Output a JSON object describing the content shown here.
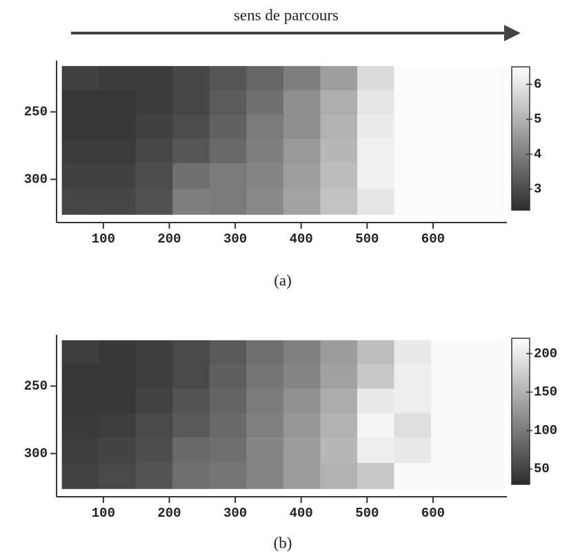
{
  "chart_data": [
    {
      "type": "heatmap",
      "annotation": "sens de parcours",
      "label": "(a)",
      "colormap": "gray",
      "yaxis_inverted": true,
      "xlim": [
        29,
        712
      ],
      "xticks": [
        100,
        200,
        300,
        400,
        500,
        600
      ],
      "ylim": [
        212,
        332
      ],
      "yticks": [
        250,
        300
      ],
      "x_edges": [
        37,
        93,
        149,
        205,
        261,
        317,
        373,
        429,
        485,
        541,
        597,
        653,
        709
      ],
      "y_edges": [
        216,
        234,
        252,
        270,
        288,
        307,
        326
      ],
      "values": [
        [
          2.8,
          2.7,
          2.7,
          2.9,
          3.2,
          3.5,
          4.0,
          4.6,
          5.8,
          6.4,
          6.4,
          6.4
        ],
        [
          2.6,
          2.6,
          2.7,
          2.9,
          3.3,
          3.7,
          4.3,
          4.9,
          6.0,
          6.4,
          6.4,
          6.4
        ],
        [
          2.6,
          2.6,
          2.8,
          3.0,
          3.4,
          3.9,
          4.3,
          5.0,
          6.1,
          6.4,
          6.4,
          6.4
        ],
        [
          2.7,
          2.7,
          2.9,
          3.2,
          3.6,
          4.0,
          4.5,
          5.1,
          6.2,
          6.4,
          6.4,
          6.4
        ],
        [
          2.8,
          2.8,
          3.0,
          3.7,
          3.9,
          4.1,
          4.6,
          5.2,
          6.2,
          6.4,
          6.4,
          6.4
        ],
        [
          2.9,
          2.9,
          3.1,
          4.0,
          3.9,
          4.2,
          4.7,
          5.3,
          6.0,
          6.4,
          6.4,
          6.4
        ]
      ],
      "clim": [
        2.4,
        6.5
      ],
      "cticks": [
        3,
        4,
        5,
        6
      ]
    },
    {
      "type": "heatmap",
      "label": "(b)",
      "colormap": "gray",
      "yaxis_inverted": true,
      "xlim": [
        29,
        712
      ],
      "xticks": [
        100,
        200,
        300,
        400,
        500,
        600
      ],
      "ylim": [
        212,
        332
      ],
      "yticks": [
        250,
        300
      ],
      "x_edges": [
        37,
        93,
        149,
        205,
        261,
        317,
        373,
        429,
        485,
        541,
        597,
        653,
        709
      ],
      "y_edges": [
        216,
        234,
        252,
        270,
        288,
        307,
        326
      ],
      "values": [
        [
          45,
          40,
          45,
          55,
          70,
          90,
          105,
          130,
          160,
          200,
          215,
          215
        ],
        [
          40,
          40,
          45,
          55,
          75,
          95,
          110,
          135,
          170,
          205,
          215,
          215
        ],
        [
          40,
          40,
          50,
          65,
          80,
          100,
          120,
          145,
          200,
          205,
          215,
          215
        ],
        [
          42,
          45,
          55,
          70,
          85,
          105,
          125,
          150,
          210,
          190,
          215,
          215
        ],
        [
          45,
          50,
          60,
          85,
          90,
          110,
          130,
          155,
          205,
          200,
          215,
          215
        ],
        [
          50,
          55,
          65,
          90,
          95,
          110,
          130,
          150,
          170,
          215,
          215,
          215
        ]
      ],
      "clim": [
        30,
        220
      ],
      "cticks": [
        50,
        100,
        150,
        200
      ]
    }
  ]
}
